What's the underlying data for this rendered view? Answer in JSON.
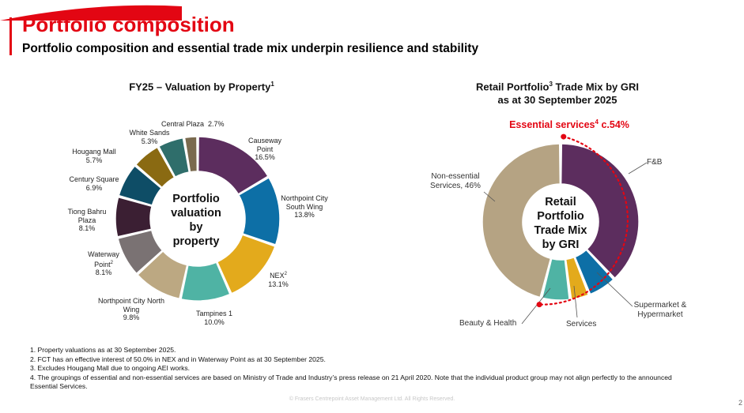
{
  "header": {
    "title": "Portfolio composition",
    "subtitle": "Portfolio composition and essential trade mix underpin resilience and stability"
  },
  "left_chart": {
    "title_prefix": "FY25 – Valuation by Property",
    "title_sup": "1",
    "center_label": [
      "Portfolio",
      "valuation",
      "by",
      "property"
    ]
  },
  "right_chart": {
    "title_line1_prefix": "Retail Portfolio",
    "title_line1_sup": "3",
    "title_line1_suffix": " Trade Mix by GRI",
    "title_line2": "as at 30 September 2025",
    "essential_prefix": "Essential services",
    "essential_sup": "4",
    "essential_suffix": " c.54%",
    "center_label": [
      "Retail",
      "Portfolio",
      "Trade Mix",
      "by GRI"
    ]
  },
  "chart_data": [
    {
      "type": "pie",
      "title": "FY25 – Valuation by Property",
      "donut": true,
      "slices": [
        {
          "label": "Causeway Point",
          "value": 16.5,
          "value_text": "16.5%",
          "color": "#5c2d5e"
        },
        {
          "label": "Northpoint City South Wing",
          "value": 13.8,
          "value_text": "13.8%",
          "color": "#0d6fa6"
        },
        {
          "label": "NEX",
          "sup": "2",
          "value": 13.1,
          "value_text": "13.1%",
          "color": "#e3aa1c"
        },
        {
          "label": "Tampines 1",
          "value": 10.0,
          "value_text": "10.0%",
          "color": "#4fb3a4"
        },
        {
          "label": "Northpoint City North Wing",
          "value": 9.8,
          "value_text": "9.8%",
          "color": "#bca882"
        },
        {
          "label": "Waterway Point",
          "sup": "2",
          "value": 8.1,
          "value_text": "8.1%",
          "color": "#7a7273"
        },
        {
          "label": "Tiong Bahru Plaza",
          "value": 8.1,
          "value_text": "8.1%",
          "color": "#3b1f33"
        },
        {
          "label": "Century Square",
          "value": 6.9,
          "value_text": "6.9%",
          "color": "#0e4d66"
        },
        {
          "label": "Hougang Mall",
          "value": 5.7,
          "value_text": "5.7%",
          "color": "#8a6a12"
        },
        {
          "label": "White Sands",
          "value": 5.3,
          "value_text": "5.3%",
          "color": "#2f6e6b"
        },
        {
          "label": "Central Plaza",
          "value": 2.7,
          "value_text": "2.7%",
          "color": "#7a6a4e"
        }
      ]
    },
    {
      "type": "pie",
      "title": "Retail Portfolio Trade Mix by GRI as at 30 September 2025",
      "donut": true,
      "slices": [
        {
          "label": "F&B",
          "value": 38,
          "color": "#5c2d5e"
        },
        {
          "label": "Supermarket & Hypermarket",
          "value": 6,
          "color": "#0d6fa6"
        },
        {
          "label": "Services",
          "value": 4,
          "color": "#e3aa1c"
        },
        {
          "label": "Beauty & Health",
          "value": 6,
          "color": "#4fb3a4"
        },
        {
          "label": "Non-essential Services, 46%",
          "value": 46,
          "color": "#b5a383"
        }
      ]
    }
  ],
  "notes": [
    "1. Property valuations as at 30 September 2025.",
    "2. FCT has an effective interest of 50.0% in NEX and in Waterway Point as at 30 September 2025.",
    "3. Excludes Hougang Mall due to ongoing AEI works.",
    "4. The groupings of essential and non-essential services are based on Ministry of Trade and Industry’s press release on 21 April 2020. Note that the individual product group may not align perfectly to the announced Essential Services."
  ],
  "footer": {
    "copyright": "© Frasers Centrepoint Asset Management Ltd. All Rights Reserved.",
    "page": "2"
  },
  "colors": {
    "accent": "#e30613"
  }
}
